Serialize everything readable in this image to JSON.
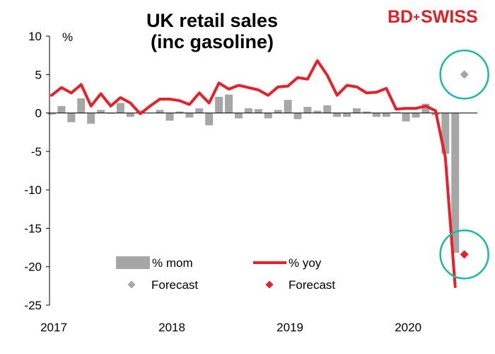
{
  "title_line1": "UK retail sales",
  "title_line2": "(inc gasoline)",
  "logo": {
    "left": "BD",
    "right": "SWISS",
    "color": "#e01f26"
  },
  "chart_data": {
    "type": "bar",
    "y_unit_label": "%",
    "ylim": [
      -25,
      10
    ],
    "yticks": [
      10,
      5,
      0,
      -5,
      -10,
      -15,
      -20,
      -25
    ],
    "xtick_labels": [
      "2017",
      "2018",
      "2019",
      "2020"
    ],
    "grid": false,
    "legend_position": "bottom-center",
    "x_start": "2017-01",
    "series": [
      {
        "name": "% mom",
        "kind": "bar",
        "color": "#a6a6a6",
        "values": [
          -0.2,
          0.9,
          -1.2,
          1.9,
          -1.4,
          0.4,
          -0.1,
          1.3,
          -0.5,
          0.3,
          0.0,
          0.4,
          -1.0,
          0.2,
          -0.6,
          0.6,
          -1.6,
          2.1,
          2.4,
          -0.7,
          0.6,
          0.5,
          -0.7,
          0.4,
          1.7,
          -0.8,
          0.8,
          0.3,
          1.0,
          -0.5,
          -0.5,
          0.6,
          0.2,
          -0.5,
          -0.5,
          0.1,
          -1.1,
          -0.6,
          1.2,
          -0.3,
          -5.3,
          -18.2
        ]
      },
      {
        "name": "% yoy",
        "kind": "line",
        "color": "#e8202a",
        "values": [
          2.3,
          3.3,
          2.6,
          3.7,
          0.9,
          2.5,
          0.9,
          2.0,
          1.3,
          -0.1,
          0.9,
          1.8,
          1.8,
          1.6,
          1.1,
          2.6,
          1.3,
          3.9,
          3.1,
          3.6,
          3.3,
          3.0,
          2.3,
          3.4,
          3.5,
          4.6,
          4.4,
          6.8,
          4.9,
          2.3,
          3.6,
          3.4,
          2.6,
          2.7,
          3.2,
          0.5,
          0.6,
          0.6,
          0.9,
          0.3,
          -5.8,
          -22.6
        ]
      },
      {
        "name": "Forecast",
        "kind": "marker",
        "color": "#a6a6a6",
        "x_index": 42,
        "value": 5.0
      },
      {
        "name": "Forecast",
        "kind": "marker",
        "color": "#e8202a",
        "x_index": 42,
        "value": -18.4
      }
    ],
    "highlight_circle_color": "#1abc9c"
  }
}
